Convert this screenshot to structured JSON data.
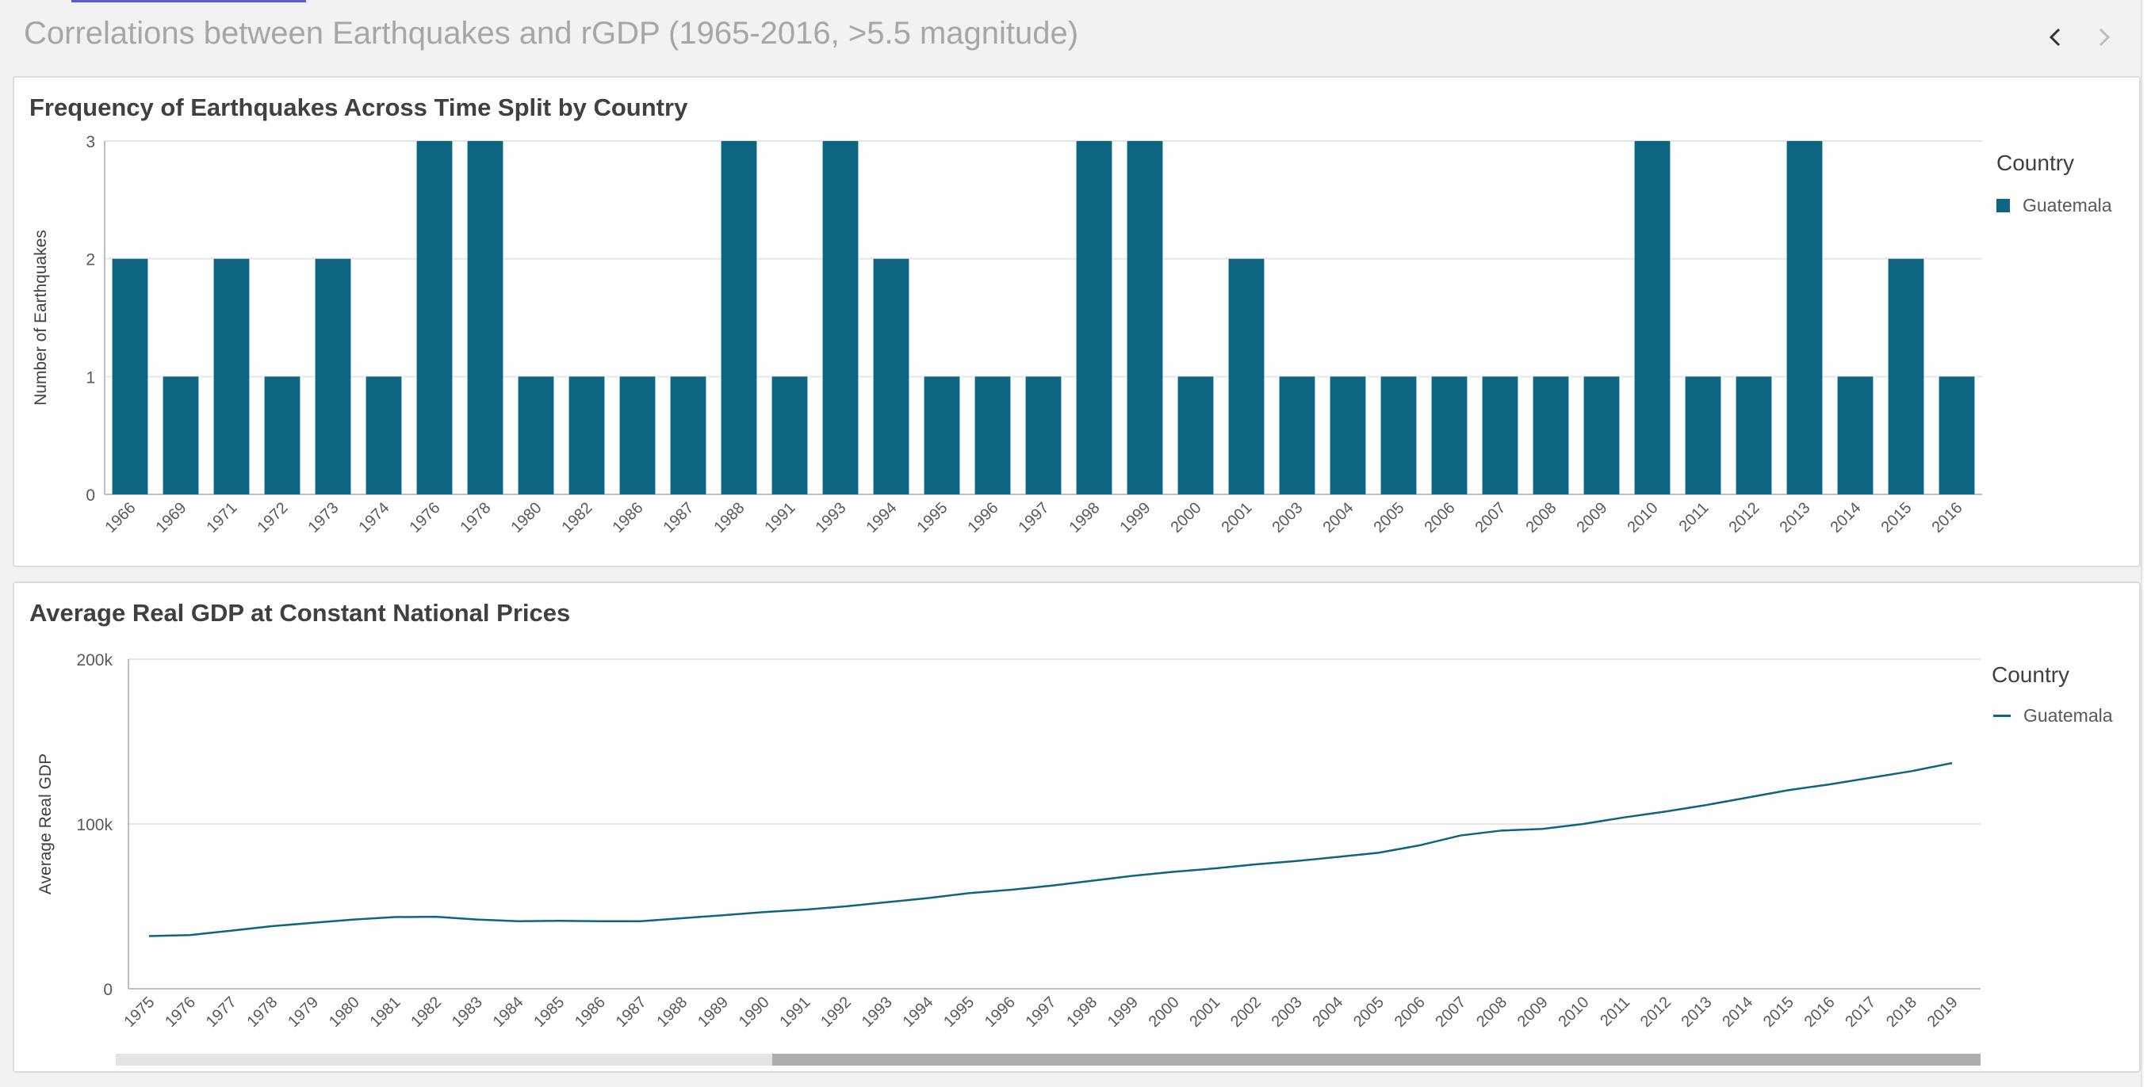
{
  "sheet": {
    "title": "Correlations between Earthquakes and rGDP (1965-2016, >5.5 magnitude)"
  },
  "navigation": {
    "prev_icon": "chevron-left-icon",
    "next_icon": "chevron-right-icon"
  },
  "colors": {
    "series": "#0e6580"
  },
  "chart_data": [
    {
      "type": "bar",
      "title": "Frequency of Earthquakes Across Time Split by Country",
      "xlabel": "",
      "ylabel": "Number of Earthquakes",
      "ylim": [
        0,
        3
      ],
      "yticks": [
        "0",
        "1",
        "2",
        "3"
      ],
      "grid": true,
      "legend": {
        "title": "Country",
        "position": "right"
      },
      "categories": [
        "1966",
        "1969",
        "1971",
        "1972",
        "1973",
        "1974",
        "1976",
        "1978",
        "1980",
        "1982",
        "1986",
        "1987",
        "1988",
        "1991",
        "1993",
        "1994",
        "1995",
        "1996",
        "1997",
        "1998",
        "1999",
        "2000",
        "2001",
        "2003",
        "2004",
        "2005",
        "2006",
        "2007",
        "2008",
        "2009",
        "2010",
        "2011",
        "2012",
        "2013",
        "2014",
        "2015",
        "2016"
      ],
      "series": [
        {
          "name": "Guatemala",
          "values": [
            2,
            1,
            2,
            1,
            2,
            1,
            3,
            3,
            1,
            1,
            1,
            1,
            3,
            1,
            3,
            2,
            1,
            1,
            1,
            3,
            3,
            1,
            2,
            1,
            1,
            1,
            1,
            1,
            1,
            1,
            3,
            1,
            1,
            3,
            1,
            2,
            1
          ]
        }
      ]
    },
    {
      "type": "line",
      "title": "Average Real GDP at Constant National Prices",
      "xlabel": "",
      "ylabel": "Average Real GDP",
      "ylim": [
        0,
        200000
      ],
      "yticks": [
        "0",
        "100k",
        "200k"
      ],
      "grid": true,
      "legend": {
        "title": "Country",
        "position": "right"
      },
      "x": [
        "1975",
        "1976",
        "1977",
        "1978",
        "1979",
        "1980",
        "1981",
        "1982",
        "1983",
        "1984",
        "1985",
        "1986",
        "1987",
        "1988",
        "1989",
        "1990",
        "1991",
        "1992",
        "1993",
        "1994",
        "1995",
        "1996",
        "1997",
        "1998",
        "1999",
        "2000",
        "2001",
        "2002",
        "2003",
        "2004",
        "2005",
        "2006",
        "2007",
        "2008",
        "2009",
        "2010",
        "2011",
        "2012",
        "2013",
        "2014",
        "2015",
        "2016",
        "2017",
        "2018",
        "2019"
      ],
      "series": [
        {
          "name": "Guatemala",
          "values": [
            32000,
            32600,
            35200,
            38000,
            40000,
            42000,
            43500,
            43700,
            42000,
            41000,
            41200,
            41000,
            41000,
            42800,
            44600,
            46500,
            48000,
            50000,
            52500,
            55000,
            58000,
            60000,
            62500,
            65500,
            68500,
            71000,
            73000,
            75500,
            77500,
            80000,
            82500,
            87000,
            93000,
            96000,
            97000,
            100000,
            104000,
            107500,
            111500,
            116000,
            120500,
            124000,
            128000,
            132000,
            137000
          ]
        }
      ]
    }
  ]
}
